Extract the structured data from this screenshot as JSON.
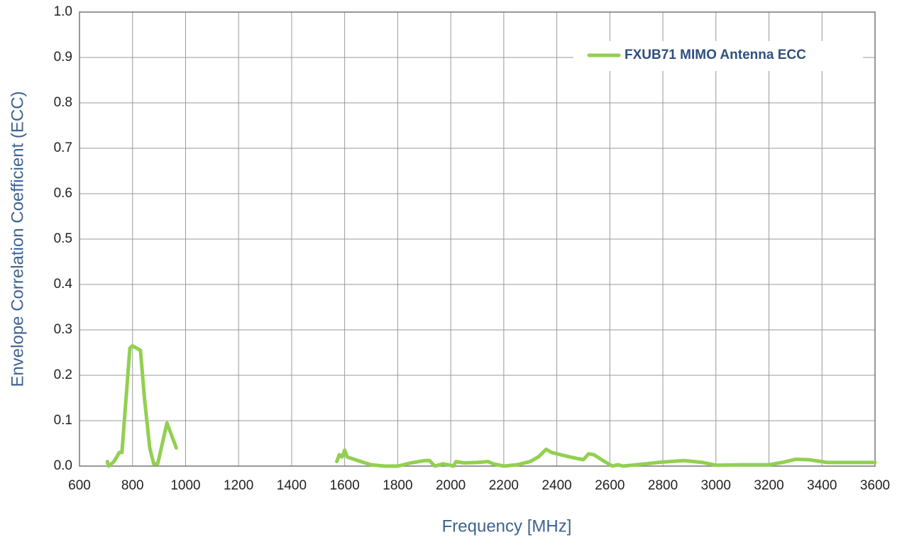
{
  "chart_data": {
    "type": "line",
    "xlabel": "Frequency [MHz]",
    "ylabel": "Envelope Correlation Coefficient (ECC)",
    "x": [
      705,
      710,
      730,
      750,
      760,
      790,
      800,
      830,
      845,
      865,
      880,
      895,
      930,
      965,
      1270,
      1570,
      1580,
      1590,
      1600,
      1610,
      1650,
      1700,
      1750,
      1800,
      1850,
      1900,
      1920,
      1940,
      1970,
      1990,
      2010,
      2020,
      2050,
      2100,
      2140,
      2160,
      2200,
      2250,
      2300,
      2330,
      2360,
      2380,
      2450,
      2500,
      2520,
      2540,
      2580,
      2610,
      2630,
      2650,
      2700,
      2800,
      2880,
      2950,
      3000,
      3100,
      3200,
      3250,
      3300,
      3350,
      3420,
      3500,
      3600
    ],
    "series": [
      {
        "name": "FXUB71 MIMO Antenna ECC",
        "color": "#92d050",
        "values": [
          0.01,
          0.0,
          0.01,
          0.03,
          0.03,
          0.26,
          0.265,
          0.255,
          0.15,
          0.04,
          0.005,
          0.005,
          0.095,
          0.04,
          null,
          0.01,
          0.025,
          0.02,
          0.035,
          0.02,
          0.012,
          0.003,
          0.0,
          0.0,
          0.007,
          0.012,
          0.012,
          0.0,
          0.005,
          0.003,
          0.0,
          0.01,
          0.007,
          0.008,
          0.01,
          0.005,
          0.0,
          0.003,
          0.01,
          0.02,
          0.037,
          0.03,
          0.02,
          0.014,
          0.027,
          0.025,
          0.01,
          0.0,
          0.003,
          0.0,
          0.003,
          0.009,
          0.012,
          0.008,
          0.002,
          0.003,
          0.003,
          0.008,
          0.015,
          0.014,
          0.008,
          0.008,
          0.008
        ]
      }
    ],
    "xlim": [
      600,
      3600
    ],
    "xticks": [
      600,
      800,
      1000,
      1200,
      1400,
      1600,
      1800,
      2000,
      2200,
      2400,
      2600,
      2800,
      3000,
      3200,
      3400,
      3600
    ],
    "ylim": [
      0,
      1
    ],
    "yticks": [
      {
        "value": 0,
        "label": "0.0"
      },
      0.1,
      0.2,
      0.3,
      0.4,
      0.5,
      0.6,
      0.7,
      0.8,
      0.9,
      {
        "value": 1,
        "label": "1.0"
      }
    ],
    "grid": true,
    "legend": "upper right"
  }
}
